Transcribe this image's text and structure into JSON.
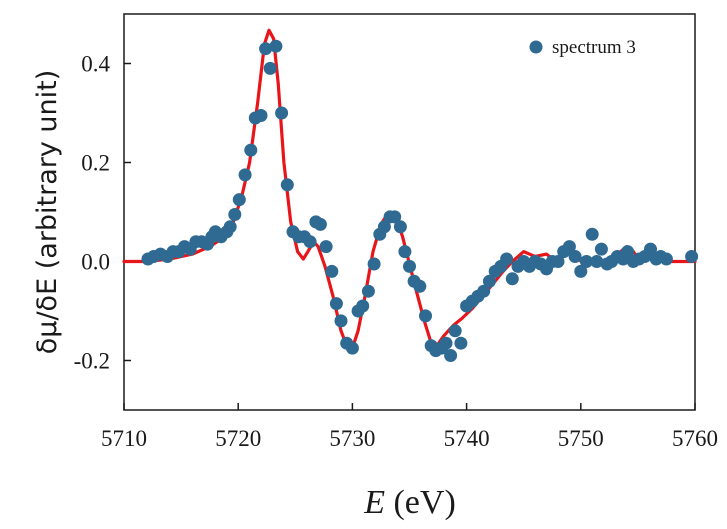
{
  "chart_data": {
    "type": "scatter",
    "xlabel_var": "E",
    "xlabel_unit": " (eV)",
    "ylabel": "δμ/δE (arbitrary unit)",
    "xlim": [
      5710,
      5760
    ],
    "ylim": [
      -0.3,
      0.5
    ],
    "x_ticks": [
      "5710",
      "5720",
      "5730",
      "5740",
      "5750",
      "5760"
    ],
    "y_ticks": [
      "-0.2",
      "0.0",
      "0.2",
      "0.4"
    ],
    "x_tick_values": [
      5710,
      5720,
      5730,
      5740,
      5750,
      5760
    ],
    "y_tick_values": [
      -0.2,
      0.0,
      0.2,
      0.4
    ],
    "legend_position": "top-right",
    "grid": false,
    "colors": {
      "points": "#2f6a93",
      "curve": "#e8161a"
    },
    "series": [
      {
        "name": "spectrum 3",
        "kind": "points",
        "points": [
          [
            5712.1,
            0.005
          ],
          [
            5712.6,
            0.01
          ],
          [
            5713.2,
            0.015
          ],
          [
            5713.8,
            0.01
          ],
          [
            5714.3,
            0.02
          ],
          [
            5714.8,
            0.02
          ],
          [
            5715.3,
            0.03
          ],
          [
            5715.8,
            0.025
          ],
          [
            5716.3,
            0.04
          ],
          [
            5716.8,
            0.04
          ],
          [
            5717.3,
            0.035
          ],
          [
            5717.7,
            0.05
          ],
          [
            5718.0,
            0.06
          ],
          [
            5718.5,
            0.05
          ],
          [
            5719.0,
            0.06
          ],
          [
            5719.3,
            0.07
          ],
          [
            5719.7,
            0.095
          ],
          [
            5720.1,
            0.125
          ],
          [
            5720.6,
            0.175
          ],
          [
            5721.1,
            0.225
          ],
          [
            5721.5,
            0.29
          ],
          [
            5722.0,
            0.295
          ],
          [
            5722.4,
            0.43
          ],
          [
            5722.8,
            0.39
          ],
          [
            5723.3,
            0.435
          ],
          [
            5723.8,
            0.3
          ],
          [
            5724.3,
            0.155
          ],
          [
            5724.8,
            0.06
          ],
          [
            5725.3,
            0.05
          ],
          [
            5725.8,
            0.05
          ],
          [
            5726.3,
            0.04
          ],
          [
            5726.8,
            0.08
          ],
          [
            5727.2,
            0.075
          ],
          [
            5727.7,
            0.03
          ],
          [
            5728.2,
            -0.02
          ],
          [
            5728.6,
            -0.085
          ],
          [
            5729.0,
            -0.12
          ],
          [
            5729.5,
            -0.165
          ],
          [
            5730.0,
            -0.175
          ],
          [
            5730.5,
            -0.1
          ],
          [
            5730.9,
            -0.09
          ],
          [
            5731.4,
            -0.06
          ],
          [
            5731.9,
            -0.005
          ],
          [
            5732.4,
            0.055
          ],
          [
            5732.8,
            0.07
          ],
          [
            5733.3,
            0.09
          ],
          [
            5733.7,
            0.09
          ],
          [
            5734.2,
            0.07
          ],
          [
            5734.6,
            0.02
          ],
          [
            5735.0,
            -0.01
          ],
          [
            5735.4,
            -0.04
          ],
          [
            5735.9,
            -0.05
          ],
          [
            5736.4,
            -0.11
          ],
          [
            5736.9,
            -0.17
          ],
          [
            5737.3,
            -0.18
          ],
          [
            5737.8,
            -0.175
          ],
          [
            5738.2,
            -0.165
          ],
          [
            5738.6,
            -0.19
          ],
          [
            5739.0,
            -0.14
          ],
          [
            5739.5,
            -0.165
          ],
          [
            5740.0,
            -0.09
          ],
          [
            5740.5,
            -0.08
          ],
          [
            5741.0,
            -0.07
          ],
          [
            5741.5,
            -0.06
          ],
          [
            5742.0,
            -0.04
          ],
          [
            5742.5,
            -0.02
          ],
          [
            5743.0,
            -0.01
          ],
          [
            5743.5,
            0.005
          ],
          [
            5744.0,
            -0.035
          ],
          [
            5744.5,
            -0.01
          ],
          [
            5745.0,
            0.0
          ],
          [
            5745.5,
            -0.01
          ],
          [
            5746.0,
            0.0
          ],
          [
            5746.5,
            -0.005
          ],
          [
            5747.0,
            -0.015
          ],
          [
            5747.5,
            0.0
          ],
          [
            5748.0,
            0.0
          ],
          [
            5748.5,
            0.02
          ],
          [
            5749.0,
            0.03
          ],
          [
            5749.5,
            0.01
          ],
          [
            5750.0,
            -0.02
          ],
          [
            5750.5,
            0.0
          ],
          [
            5751.0,
            0.055
          ],
          [
            5751.4,
            0.0
          ],
          [
            5751.8,
            0.025
          ],
          [
            5752.3,
            -0.005
          ],
          [
            5752.7,
            0.0
          ],
          [
            5753.2,
            0.01
          ],
          [
            5753.7,
            0.005
          ],
          [
            5754.1,
            0.02
          ],
          [
            5754.6,
            0.0
          ],
          [
            5755.1,
            0.005
          ],
          [
            5755.6,
            0.01
          ],
          [
            5756.1,
            0.025
          ],
          [
            5756.6,
            0.005
          ],
          [
            5757.0,
            0.01
          ],
          [
            5757.5,
            0.005
          ],
          [
            5759.7,
            0.01
          ]
        ]
      },
      {
        "name": "",
        "kind": "line",
        "points": [
          [
            5710.0,
            0.0
          ],
          [
            5712.0,
            0.0
          ],
          [
            5714.0,
            0.005
          ],
          [
            5716.0,
            0.015
          ],
          [
            5717.5,
            0.03
          ],
          [
            5718.5,
            0.045
          ],
          [
            5719.5,
            0.075
          ],
          [
            5720.3,
            0.13
          ],
          [
            5721.0,
            0.2
          ],
          [
            5721.7,
            0.32
          ],
          [
            5722.3,
            0.44
          ],
          [
            5722.7,
            0.467
          ],
          [
            5723.1,
            0.45
          ],
          [
            5723.5,
            0.36
          ],
          [
            5724.0,
            0.2
          ],
          [
            5724.6,
            0.08
          ],
          [
            5725.2,
            0.02
          ],
          [
            5725.7,
            0.005
          ],
          [
            5726.1,
            0.02
          ],
          [
            5726.6,
            0.04
          ],
          [
            5727.0,
            0.03
          ],
          [
            5727.6,
            -0.01
          ],
          [
            5728.3,
            -0.07
          ],
          [
            5729.0,
            -0.14
          ],
          [
            5729.5,
            -0.17
          ],
          [
            5730.0,
            -0.175
          ],
          [
            5730.5,
            -0.14
          ],
          [
            5731.1,
            -0.07
          ],
          [
            5731.8,
            0.02
          ],
          [
            5732.5,
            0.075
          ],
          [
            5733.2,
            0.1
          ],
          [
            5733.8,
            0.09
          ],
          [
            5734.4,
            0.05
          ],
          [
            5735.0,
            -0.005
          ],
          [
            5735.6,
            -0.06
          ],
          [
            5736.3,
            -0.12
          ],
          [
            5736.9,
            -0.165
          ],
          [
            5737.4,
            -0.17
          ],
          [
            5738.0,
            -0.15
          ],
          [
            5738.8,
            -0.13
          ],
          [
            5739.6,
            -0.115
          ],
          [
            5740.5,
            -0.095
          ],
          [
            5741.4,
            -0.07
          ],
          [
            5742.3,
            -0.045
          ],
          [
            5743.2,
            -0.02
          ],
          [
            5744.0,
            0.0
          ],
          [
            5745.0,
            0.02
          ],
          [
            5746.0,
            0.01
          ],
          [
            5747.0,
            0.015
          ],
          [
            5747.8,
            0.0
          ],
          [
            5748.4,
            0.015
          ],
          [
            5749.0,
            0.035
          ],
          [
            5749.5,
            0.015
          ],
          [
            5750.2,
            -0.005
          ],
          [
            5751.0,
            0.005
          ],
          [
            5752.0,
            0.0
          ],
          [
            5753.0,
            0.01
          ],
          [
            5754.0,
            0.03
          ],
          [
            5754.6,
            0.02
          ],
          [
            5755.2,
            0.0
          ],
          [
            5756.0,
            0.01
          ],
          [
            5757.0,
            0.005
          ],
          [
            5758.0,
            0.0
          ],
          [
            5760.0,
            0.0
          ]
        ]
      }
    ]
  }
}
